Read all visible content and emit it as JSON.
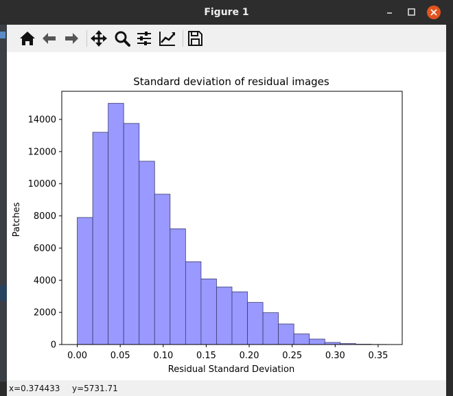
{
  "window": {
    "title": "Figure 1"
  },
  "toolbar": {
    "buttons": [
      {
        "name": "home-icon"
      },
      {
        "name": "back-arrow-icon"
      },
      {
        "name": "forward-arrow-icon"
      },
      {
        "name": "pan-icon"
      },
      {
        "name": "zoom-icon"
      },
      {
        "name": "subplots-config-icon"
      },
      {
        "name": "edit-axis-icon"
      },
      {
        "name": "save-icon"
      }
    ]
  },
  "status": {
    "x_readout": "x=0.374433",
    "y_readout": "y=5731.71"
  },
  "colors": {
    "bar_fill": "#9999ff",
    "bar_edge": "#3b3b6e",
    "close_button": "#e2541f"
  },
  "chart_data": {
    "type": "bar",
    "title": "Standard deviation of residual images",
    "xlabel": "Residual Standard Deviation",
    "ylabel": "Patches",
    "bin_edges": [
      0.0,
      0.018,
      0.036,
      0.054,
      0.072,
      0.09,
      0.108,
      0.126,
      0.144,
      0.162,
      0.18,
      0.198,
      0.216,
      0.234,
      0.252,
      0.27,
      0.288,
      0.306,
      0.324,
      0.342,
      0.36
    ],
    "values": [
      7900,
      13200,
      15000,
      13750,
      11400,
      9350,
      7200,
      5150,
      4080,
      3580,
      3280,
      2620,
      1980,
      1280,
      660,
      340,
      130,
      60,
      20,
      8
    ],
    "xlim": [
      -0.018,
      0.378
    ],
    "ylim": [
      0,
      15750
    ],
    "xticks": [
      0.0,
      0.05,
      0.1,
      0.15,
      0.2,
      0.25,
      0.3,
      0.35
    ],
    "xtick_labels": [
      "0.00",
      "0.05",
      "0.10",
      "0.15",
      "0.20",
      "0.25",
      "0.30",
      "0.35"
    ],
    "yticks": [
      0,
      2000,
      4000,
      6000,
      8000,
      10000,
      12000,
      14000
    ],
    "ytick_labels": [
      "0",
      "2000",
      "4000",
      "6000",
      "8000",
      "10000",
      "12000",
      "14000"
    ],
    "grid": false,
    "legend": "none"
  }
}
